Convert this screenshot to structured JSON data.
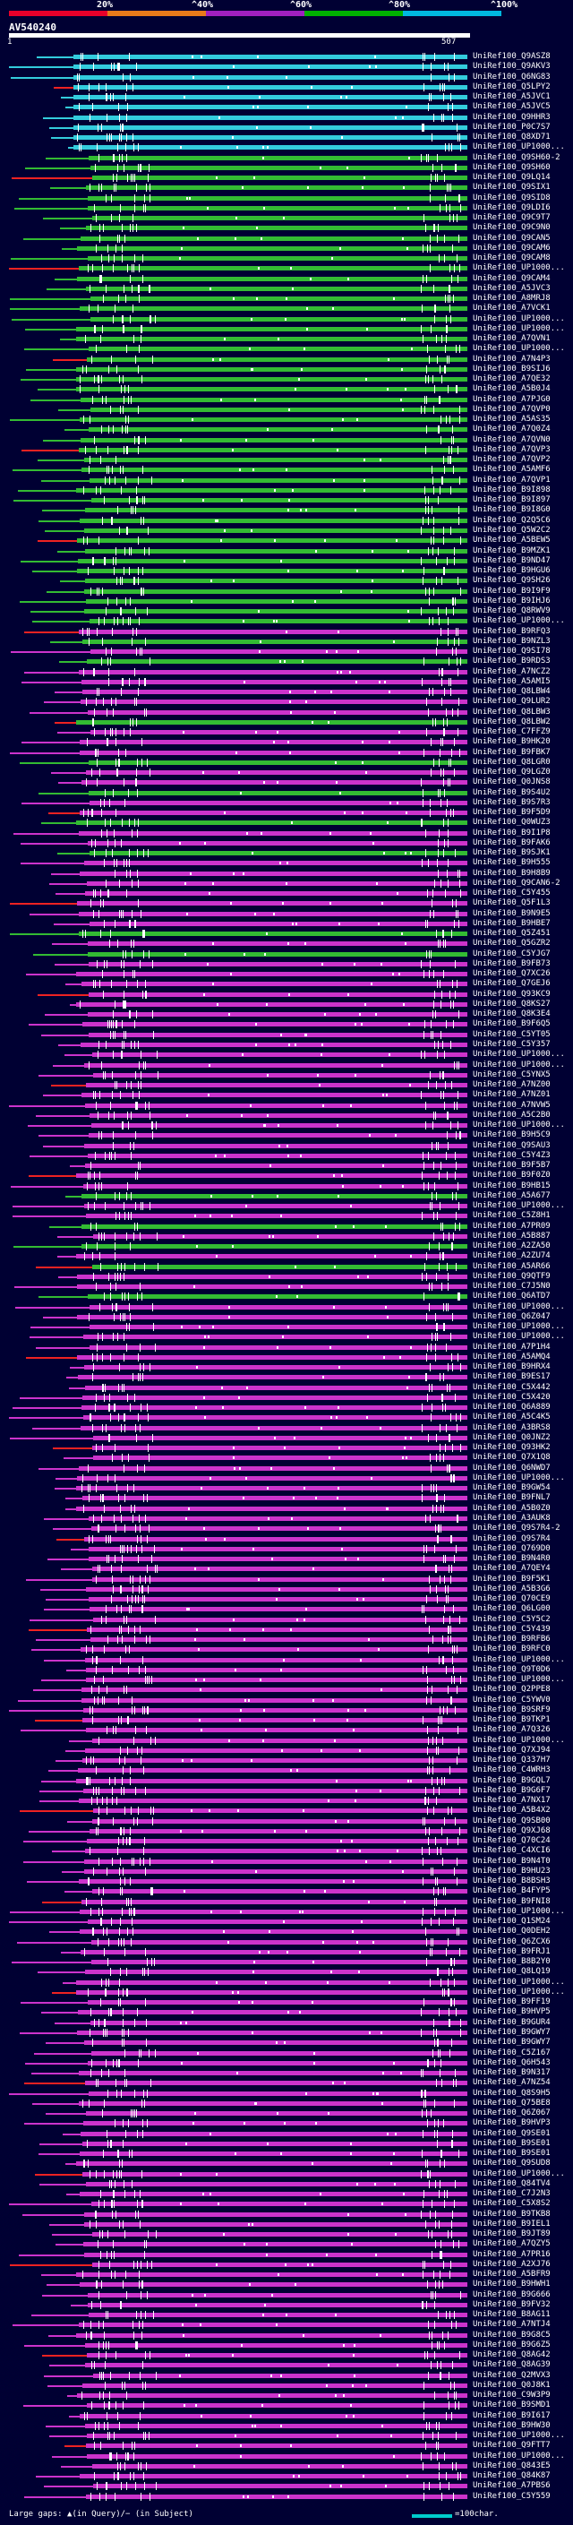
{
  "legend": {
    "labels": [
      "20%",
      "^40%",
      "^60%",
      "^80%",
      "^100%"
    ],
    "colors": [
      "#e8002a",
      "#e87a1a",
      "#a020c0",
      "#00b000",
      "#00b8e0"
    ]
  },
  "query": {
    "title": "AV540240",
    "start": "1",
    "end": "507"
  },
  "colors": {
    "cyan": "#33ccdd",
    "green": "#33bb33",
    "magenta": "#cc33cc",
    "red": "#ee2222",
    "background": "#000033"
  },
  "hits": [
    "UniRef100_Q9ASZ8",
    "UniRef100_Q9AKV3",
    "UniRef100_Q6NG83",
    "UniRef100_Q5LPY2",
    "UniRef100_A5JVC1",
    "UniRef100_A5JVC5",
    "UniRef100_Q9HHR3",
    "UniRef100_P0C7S7",
    "UniRef100_Q8XD71",
    "UniRef100_UP1000...",
    "UniRef100_Q9SH60-2",
    "UniRef100_Q9SH60",
    "UniRef100_Q9LQ14",
    "UniRef100_Q9SIX1",
    "UniRef100_Q9SID8",
    "UniRef100_Q9LDI6",
    "UniRef100_Q9C9T7",
    "UniRef100_Q9C9N0",
    "UniRef100_Q9CAN5",
    "UniRef100_Q9CAM6",
    "UniRef100_Q9CAM8",
    "UniRef100_UP1000...",
    "UniRef100_Q9CAM4",
    "UniRef100_A5JVC3",
    "UniRef100_A8MRJ8",
    "UniRef100_A7VCK1",
    "UniRef100_UP1000...",
    "UniRef100_UP1000...",
    "UniRef100_A7QVN1",
    "UniRef100_UP1000...",
    "UniRef100_A7N4P3",
    "UniRef100_B9SIJ6",
    "UniRef100_A7QE32",
    "UniRef100_A5B0J4",
    "UniRef100_A7PJG0",
    "UniRef100_A7QVP0",
    "UniRef100_A5AS35",
    "UniRef100_A7Q0Z4",
    "UniRef100_A7QVN0",
    "UniRef100_A7QVP3",
    "UniRef100_A7QVP2",
    "UniRef100_A5AMF6",
    "UniRef100_A7QVP1",
    "UniRef100_B9I898",
    "UniRef100_B9I897",
    "UniRef100_B9I8G0",
    "UniRef100_Q2Q5C6",
    "UniRef100_Q5W2C2",
    "UniRef100_A5BEW5",
    "UniRef100_B9MZK1",
    "UniRef100_B9ND47",
    "UniRef100_B9HGU6",
    "UniRef100_Q9SH26",
    "UniRef100_B9I9F9",
    "UniRef100_B9IHJ6",
    "UniRef100_Q8RWV9",
    "UniRef100_UP1000...",
    "UniRef100_B9RFQ3",
    "UniRef100_B9NZL3",
    "UniRef100_Q9SI78",
    "UniRef100_B9RDS3",
    "UniRef100_A7NCZ2",
    "UniRef100_A5AMI5",
    "UniRef100_Q8LBW4",
    "UniRef100_Q9LUR2",
    "UniRef100_Q8LBW3",
    "UniRef100_Q8LBW2",
    "UniRef100_C7FFZ9",
    "UniRef100_B9HK20",
    "UniRef100_B9FBK7",
    "UniRef100_Q8LGR0",
    "UniRef100_Q9LGZ0",
    "UniRef100_Q0JNS8",
    "UniRef100_B9S4U2",
    "UniRef100_B9S7R3",
    "UniRef100_B9F5D9",
    "UniRef100_Q0WUZ3",
    "UniRef100_B9I1P8",
    "UniRef100_B9FAK6",
    "UniRef100_B9SJK1",
    "UniRef100_B9H555",
    "UniRef100_B9H8B9",
    "UniRef100_Q9CAN6-2",
    "UniRef100_C5Y455",
    "UniRef100_Q5F1L3",
    "UniRef100_B9N9E5",
    "UniRef100_B9HBE7",
    "UniRef100_Q5Z451",
    "UniRef100_Q5GZR2",
    "UniRef100_C5YJG7",
    "UniRef100_B9FB73",
    "UniRef100_Q7XC26",
    "UniRef100_Q7GEJ6",
    "UniRef100_Q93KC9",
    "UniRef100_Q8KS27",
    "UniRef100_Q8K3E4",
    "UniRef100_B9F6Q5",
    "UniRef100_C5YT05",
    "UniRef100_C5Y357",
    "UniRef100_UP1000...",
    "UniRef100_UP1000...",
    "UniRef100_C5YNX5",
    "UniRef100_A7NZ00",
    "UniRef100_A7NZ01",
    "UniRef100_A7NVW5",
    "UniRef100_A5C2B0",
    "UniRef100_UP1000...",
    "UniRef100_B9H5C9",
    "UniRef100_Q9SAU3",
    "UniRef100_C5Y4Z3",
    "UniRef100_B9F5B7",
    "UniRef100_B9F0Z0",
    "UniRef100_B9HB15",
    "UniRef100_A5A677",
    "UniRef100_UP1000...",
    "UniRef100_C5Z8H1",
    "UniRef100_A7PR09",
    "UniRef100_A5B887",
    "UniRef100_A2ZA50",
    "UniRef100_A2ZU74",
    "UniRef100_A5AR66",
    "UniRef100_Q9QTF9",
    "UniRef100_C7J5N0",
    "UniRef100_Q6ATD7",
    "UniRef100_UP1000...",
    "UniRef100_Q6Z047",
    "UniRef100_UP1000...",
    "UniRef100_UP1000...",
    "UniRef100_A7P1H4",
    "UniRef100_A5AMQ4",
    "UniRef100_B9HRX4",
    "UniRef100_B9ES17",
    "UniRef100_C5X442",
    "UniRef100_C5X420",
    "UniRef100_Q6A889",
    "UniRef100_A5C4K5",
    "UniRef100_A3BRS8",
    "UniRef100_Q0JNZ2",
    "UniRef100_Q93HK2",
    "UniRef100_Q7X1Q8",
    "UniRef100_Q6NWD7",
    "UniRef100_UP1000...",
    "UniRef100_B9GW54",
    "UniRef100_B9FNL7",
    "UniRef100_A5B0Z0",
    "UniRef100_A3AUK8",
    "UniRef100_Q9S7R4-2",
    "UniRef100_Q9S7R4",
    "UniRef100_Q769D0",
    "UniRef100_B9N4R0",
    "UniRef100_A7QEY4",
    "UniRef100_B9F5K1",
    "UniRef100_A5B3G6",
    "UniRef100_Q70CE9",
    "UniRef100_Q6LG00",
    "UniRef100_C5Y5C2",
    "UniRef100_C5Y439",
    "UniRef100_B9RFB6",
    "UniRef100_B9RFC0",
    "UniRef100_UP1000...",
    "UniRef100_Q9T0D6",
    "UniRef100_UP1000...",
    "UniRef100_Q2PPE8",
    "UniRef100_C5YWV0",
    "UniRef100_B9SRF9",
    "UniRef100_B9TKP1",
    "UniRef100_A7Q326",
    "UniRef100_UP1000...",
    "UniRef100_Q7XJ94",
    "UniRef100_Q337H7",
    "UniRef100_C4WRH3",
    "UniRef100_B9GQL7",
    "UniRef100_B9G6F7",
    "UniRef100_A7NX17",
    "UniRef100_A5B4X2",
    "UniRef100_Q9SB00",
    "UniRef100_Q9XJ68",
    "UniRef100_Q70C24",
    "UniRef100_C4XCI6",
    "UniRef100_B9N4T0",
    "UniRef100_B9HU23",
    "UniRef100_B8BSH3",
    "UniRef100_B4FYP5",
    "UniRef100_B9FNI8",
    "UniRef100_UP1000...",
    "UniRef100_Q1SM24",
    "UniRef100_Q0DEH2",
    "UniRef100_Q6ZCX6",
    "UniRef100_B9FRJ1",
    "UniRef100_B8B2Y0",
    "UniRef100_Q8LQ19",
    "UniRef100_UP1000...",
    "UniRef100_UP1000...",
    "UniRef100_B9FF19",
    "UniRef100_B9HVP5",
    "UniRef100_B9GUR4",
    "UniRef100_B9GWY7",
    "UniRef100_B9GWY7",
    "UniRef100_C5Z167",
    "UniRef100_Q6H543",
    "UniRef100_B9N317",
    "UniRef100_A7NZ54",
    "UniRef100_Q8S9H5",
    "UniRef100_Q75BE8",
    "UniRef100_Q6Z067",
    "UniRef100_B9HVP3",
    "UniRef100_Q9SE01",
    "UniRef100_B9SE01",
    "UniRef100_B9SE01",
    "UniRef100_Q9SUD8",
    "UniRef100_UP1000...",
    "UniRef100_Q84TV4",
    "UniRef100_C7J2N3",
    "UniRef100_C5X8S2",
    "UniRef100_B9TKB8",
    "UniRef100_B9IEL1",
    "UniRef100_B9JT89",
    "UniRef100_A7QZY5",
    "UniRef100_A7PR16",
    "UniRef100_A2XJ76",
    "UniRef100_A5BFR9",
    "UniRef100_B9HWH1",
    "UniRef100_B9G666",
    "UniRef100_B9FV32",
    "UniRef100_B8AG11",
    "UniRef100_A7NTJ4",
    "UniRef100_B9G8C5",
    "UniRef100_B9G6Z5",
    "UniRef100_Q8AG42",
    "UniRef100_Q8AG39",
    "UniRef100_Q2MVX3",
    "UniRef100_Q0J8K1",
    "UniRef100_C9W3P9",
    "UniRef100_B9SMD1",
    "UniRef100_B9I617",
    "UniRef100_B9HW30",
    "UniRef100_UP1000...",
    "UniRef100_Q9FTT7",
    "UniRef100_UP1000...",
    "UniRef100_Q843E5",
    "UniRef100_Q84K87",
    "UniRef100_A7PBS6",
    "UniRef100_C5Y559"
  ],
  "footer": {
    "gaps_text": "Large gaps: ▲(in Query)/− (in Subject)",
    "key_text": "=100char."
  }
}
